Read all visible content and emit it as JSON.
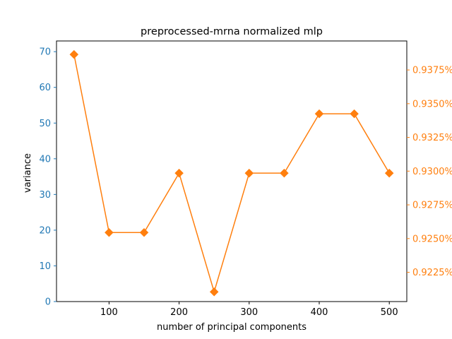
{
  "chart_data": {
    "type": "line",
    "title": "preprocessed-mrna normalized mlp",
    "xlabel": "number of principal components",
    "ylabel": "variance",
    "ylabel_right": "",
    "x": [
      50,
      100,
      150,
      200,
      250,
      300,
      350,
      400,
      450,
      500
    ],
    "xlim": [
      25,
      525
    ],
    "ylim": [
      0,
      73
    ],
    "ylim_right": [
      0.92033,
      0.93965
    ],
    "xticks": [
      100,
      200,
      300,
      400,
      500
    ],
    "yticks": [
      0,
      10,
      20,
      30,
      40,
      50,
      60,
      70
    ],
    "yticks_right": [
      0.9225,
      0.925,
      0.9275,
      0.93,
      0.9325,
      0.935,
      0.9375
    ],
    "yticks_right_labels": [
      "0.9225%",
      "0.9250%",
      "0.9275%",
      "0.9300%",
      "0.9325%",
      "0.9350%",
      "0.9375%"
    ],
    "series": [
      {
        "axis": "right",
        "values": [
          0.93865,
          0.92545,
          0.92545,
          0.92985,
          0.92105,
          0.92985,
          0.92985,
          0.93425,
          0.93425,
          0.92985
        ],
        "color": "#ff7f0e",
        "marker": "diamond"
      }
    ],
    "left_axis_color": "#1f77b4",
    "right_axis_color": "#ff7f0e",
    "grid": false,
    "legend": "none"
  }
}
